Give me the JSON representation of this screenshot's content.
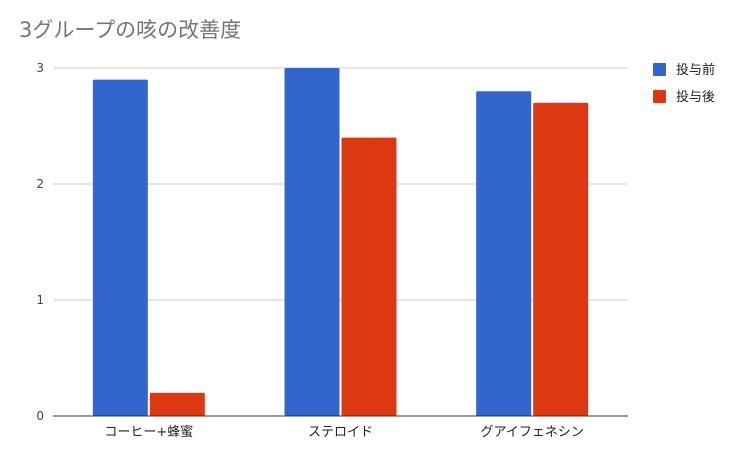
{
  "chart_data": {
    "type": "bar",
    "title": "3グループの咳の改善度",
    "categories": [
      "コーヒー+蜂蜜",
      "ステロイド",
      "グアイフェネシン"
    ],
    "series": [
      {
        "name": "投与前",
        "values": [
          2.9,
          3.0,
          2.8
        ],
        "color": "#3366cc"
      },
      {
        "name": "投与後",
        "values": [
          0.2,
          2.4,
          2.7
        ],
        "color": "#dc3912"
      }
    ],
    "ylim": [
      0,
      3
    ],
    "yticks": [
      0,
      1,
      2,
      3
    ],
    "grid": true,
    "legend_position": "right",
    "xlabel": "",
    "ylabel": ""
  }
}
